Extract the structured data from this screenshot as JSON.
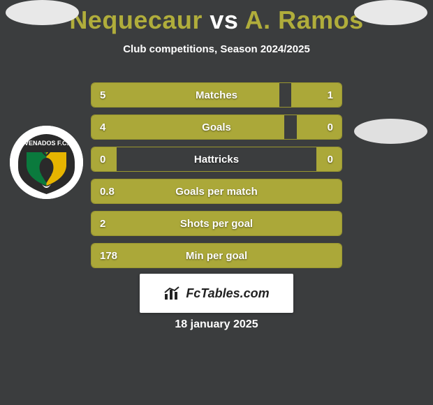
{
  "title": {
    "player1": "Nequecaur",
    "vs": "vs",
    "player2": "A. Ramos",
    "p1_color": "#b0ad3b",
    "vs_color": "#ffffff",
    "p2_color": "#b0ad3b",
    "fontsize": 36
  },
  "subtitle": "Club competitions, Season 2024/2025",
  "bar_colors": {
    "fill": "#aba839",
    "border": "#9a972f",
    "bg": "#3b3d3e"
  },
  "background_color": "#3b3d3e",
  "stats": [
    {
      "label": "Matches",
      "left_val": "5",
      "right_val": "1",
      "left_pct": 75,
      "right_pct": 20
    },
    {
      "label": "Goals",
      "left_val": "4",
      "right_val": "0",
      "left_pct": 77,
      "right_pct": 18
    },
    {
      "label": "Hattricks",
      "left_val": "0",
      "right_val": "0",
      "left_pct": 10,
      "right_pct": 10
    },
    {
      "label": "Goals per match",
      "left_val": "0.8",
      "right_val": "",
      "left_pct": 100,
      "right_pct": 0
    },
    {
      "label": "Shots per goal",
      "left_val": "2",
      "right_val": "",
      "left_pct": 100,
      "right_pct": 0
    },
    {
      "label": "Min per goal",
      "left_val": "178",
      "right_val": "",
      "left_pct": 100,
      "right_pct": 0
    }
  ],
  "brand": "FcTables.com",
  "date": "18 january 2025",
  "club_left": {
    "name": "Venados FC",
    "badge_colors": {
      "outer": "#ffffff",
      "left": "#0a7a3d",
      "right": "#e6b400",
      "arc_text_bg": "#2a2a2a",
      "deer": "#2a2a2a"
    }
  }
}
